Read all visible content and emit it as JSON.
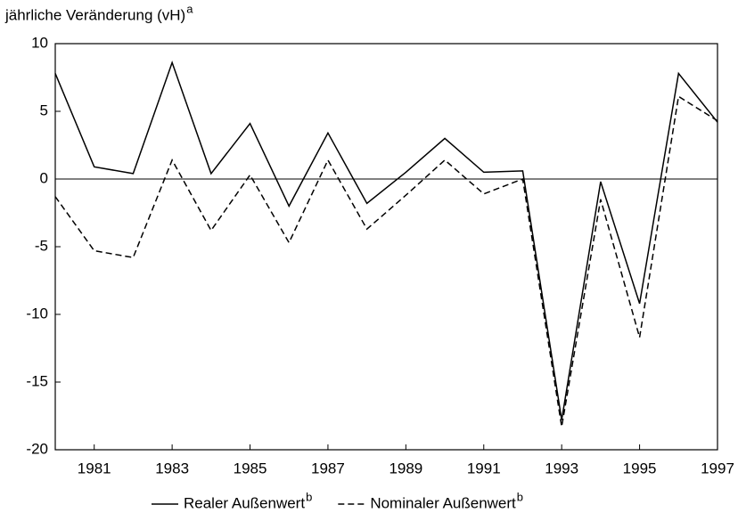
{
  "chart_data": {
    "type": "line",
    "ylabel": "jährliche Veränderung (vH)",
    "ylabel_note": "a",
    "x": [
      1980,
      1981,
      1982,
      1983,
      1984,
      1985,
      1986,
      1987,
      1988,
      1989,
      1990,
      1991,
      1992,
      1993,
      1994,
      1995,
      1996,
      1997
    ],
    "series": [
      {
        "name": "Realer Außenwert",
        "note": "b",
        "color": "#000000",
        "dash": "solid",
        "values": [
          7.8,
          0.9,
          0.4,
          8.6,
          0.4,
          4.1,
          -2.0,
          3.4,
          -1.8,
          0.5,
          3.0,
          0.5,
          0.6,
          -17.8,
          -0.2,
          -9.2,
          7.8,
          4.2
        ]
      },
      {
        "name": "Nominaler Außenwert",
        "note": "b",
        "color": "#000000",
        "dash": "dashed",
        "values": [
          -1.3,
          -5.3,
          -5.8,
          1.4,
          -3.8,
          0.3,
          -4.7,
          1.4,
          -3.7,
          -1.2,
          1.4,
          -1.1,
          0.0,
          -18.3,
          -1.5,
          -11.7,
          6.1,
          4.3
        ]
      }
    ],
    "xlim": [
      1980,
      1997
    ],
    "xticks": [
      1981,
      1983,
      1985,
      1987,
      1989,
      1991,
      1993,
      1995,
      1997
    ],
    "ylim": [
      -20,
      10
    ],
    "yticks": [
      10,
      5,
      0,
      -5,
      -10,
      -15,
      -20
    ],
    "zero_line": true,
    "legend": "bottom"
  }
}
